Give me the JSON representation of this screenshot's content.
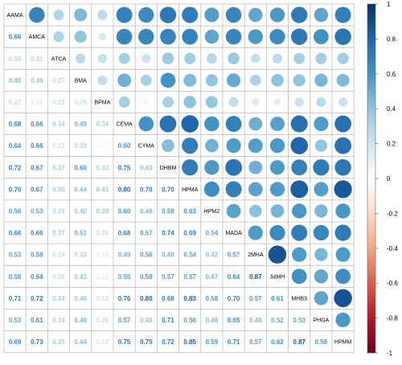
{
  "chart_data": {
    "type": "heatmap",
    "variables": [
      "AAMA",
      "AMCA",
      "ATCA",
      "BMA",
      "BPMA",
      "CEMA",
      "CYMA",
      "DHBM",
      "HPMA",
      "HPM2",
      "MADA",
      "2MHA",
      "34MH",
      "MHB3",
      "PHGA",
      "HPMM"
    ],
    "lower_display": [
      [],
      [
        "0.66"
      ],
      [
        "0.30",
        "0.31"
      ],
      [
        "0.45",
        "0.40",
        "0.27"
      ],
      [
        "0.27",
        "0.16",
        "0.23",
        "0.25"
      ],
      [
        "0.68",
        "0.66",
        "0.34",
        "0.49",
        "0.34"
      ],
      [
        "0.64",
        "0.66",
        "0.22",
        "0.33",
        "0.07",
        "0.60"
      ],
      [
        "0.72",
        "0.67",
        "0.37",
        "0.60",
        "0.33",
        "0.75",
        "0.43"
      ],
      [
        "0.70",
        "0.67",
        "0.35",
        "0.44",
        "0.41",
        "0.80",
        "0.70",
        "0.70"
      ],
      [
        "0.56",
        "0.53",
        "0.29",
        "0.40",
        "0.39",
        "0.60",
        "0.48",
        "0.58",
        "0.63"
      ],
      [
        "0.66",
        "0.66",
        "0.37",
        "0.51",
        "0.25",
        "0.68",
        "0.57",
        "0.74",
        "0.69",
        "0.54"
      ],
      [
        "0.53",
        "0.58",
        "0.24",
        "0.32",
        "0.15",
        "0.49",
        "0.56",
        "0.49",
        "0.54",
        "0.42",
        "0.57"
      ],
      [
        "0.58",
        "0.64",
        "0.26",
        "0.41",
        "0.13",
        "0.55",
        "0.58",
        "0.57",
        "0.57",
        "0.47",
        "0.64",
        "0.87"
      ],
      [
        "0.71",
        "0.72",
        "0.34",
        "0.40",
        "0.22",
        "0.76",
        "0.80",
        "0.68",
        "0.83",
        "0.58",
        "0.70",
        "0.57",
        "0.61"
      ],
      [
        "0.53",
        "0.61",
        "0.34",
        "0.46",
        "0.26",
        "0.57",
        "0.40",
        "0.71",
        "0.56",
        "0.46",
        "0.65",
        "0.46",
        "0.52",
        "0.53"
      ],
      [
        "0.69",
        "0.73",
        "0.35",
        "0.44",
        "0.22",
        "0.75",
        "0.75",
        "0.72",
        "0.85",
        "0.59",
        "0.71",
        "0.57",
        "0.62",
        "0.87",
        "0.58"
      ]
    ],
    "color_scale": {
      "ticks": [
        "1",
        "0.8",
        "0.6",
        "0.4",
        "0.2",
        "0",
        "-0.2",
        "-0.4",
        "-0.6",
        "-0.8",
        "-1"
      ],
      "range": [
        -1,
        1
      ],
      "stops": [
        "#67001F",
        "#B2182B",
        "#D6604D",
        "#F4A582",
        "#FDDBC7",
        "#FFFFFF",
        "#D1E5F0",
        "#92C5DE",
        "#4393C3",
        "#2166AC",
        "#053061"
      ]
    },
    "diagonal": "labels",
    "upper": "circles",
    "lower": "numbers"
  }
}
